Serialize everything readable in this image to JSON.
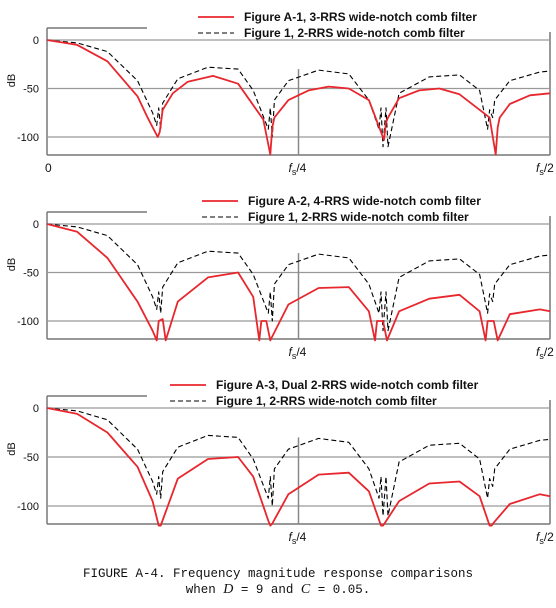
{
  "chart_data": [
    {
      "type": "line",
      "ylabel": "dB",
      "ylim": [
        -120,
        5
      ],
      "yticks": [
        0,
        -50,
        -100
      ],
      "xlim": [
        0,
        0.5
      ],
      "xtick_labels": {
        "start": "0",
        "mid": "fs/4",
        "end": "fs/2"
      },
      "grid": true,
      "legend_placement": "top-right",
      "series": [
        {
          "name": "Figure A-1, 3-RRS wide-notch comb filter",
          "color": "#e8262d",
          "dash": "solid",
          "x": [
            0,
            0.03,
            0.06,
            0.09,
            0.1,
            0.11,
            0.112,
            0.115,
            0.125,
            0.14,
            0.165,
            0.19,
            0.215,
            0.222,
            0.224,
            0.226,
            0.24,
            0.26,
            0.28,
            0.3,
            0.32,
            0.335,
            0.337,
            0.339,
            0.35,
            0.37,
            0.39,
            0.41,
            0.44,
            0.446,
            0.448,
            0.45,
            0.46,
            0.48,
            0.5
          ],
          "y": [
            0,
            -5,
            -22,
            -58,
            -80,
            -100,
            -95,
            -72,
            -55,
            -43,
            -37,
            -45,
            -82,
            -118,
            -90,
            -80,
            -62,
            -52,
            -48,
            -50,
            -62,
            -103,
            -85,
            -80,
            -60,
            -52,
            -50,
            -56,
            -80,
            -118,
            -90,
            -80,
            -66,
            -57,
            -55
          ]
        },
        {
          "name": "Figure 1, 2-RRS wide-notch comb filter",
          "color": "#000000",
          "dash": "dashed",
          "x": [
            0,
            0.03,
            0.06,
            0.09,
            0.105,
            0.109,
            0.111,
            0.113,
            0.115,
            0.13,
            0.16,
            0.19,
            0.205,
            0.22,
            0.222,
            0.224,
            0.226,
            0.24,
            0.27,
            0.3,
            0.32,
            0.33,
            0.332,
            0.334,
            0.337,
            0.339,
            0.35,
            0.38,
            0.41,
            0.43,
            0.438,
            0.44,
            0.443,
            0.445,
            0.46,
            0.49,
            0.5
          ],
          "y": [
            0,
            -3,
            -12,
            -42,
            -75,
            -88,
            -70,
            -92,
            -65,
            -40,
            -28,
            -30,
            -52,
            -92,
            -70,
            -100,
            -62,
            -42,
            -31,
            -35,
            -62,
            -92,
            -70,
            -110,
            -70,
            -110,
            -55,
            -38,
            -36,
            -52,
            -92,
            -72,
            -80,
            -62,
            -42,
            -33,
            -32
          ]
        }
      ]
    },
    {
      "type": "line",
      "ylabel": "dB",
      "ylim": [
        -120,
        5
      ],
      "yticks": [
        0,
        -50,
        -100
      ],
      "xlim": [
        0,
        0.5
      ],
      "xtick_labels": {
        "mid": "fs/4",
        "end": "fs/2"
      },
      "grid": true,
      "legend_placement": "top-right",
      "series": [
        {
          "name": "Figure A-2, 4-RRS wide-notch comb filter",
          "color": "#e8262d",
          "dash": "solid",
          "x": [
            0,
            0.03,
            0.06,
            0.09,
            0.105,
            0.109,
            0.111,
            0.115,
            0.118,
            0.13,
            0.16,
            0.19,
            0.205,
            0.211,
            0.213,
            0.218,
            0.222,
            0.24,
            0.27,
            0.3,
            0.32,
            0.326,
            0.328,
            0.334,
            0.338,
            0.35,
            0.38,
            0.41,
            0.43,
            0.436,
            0.438,
            0.444,
            0.448,
            0.46,
            0.49,
            0.5
          ],
          "y": [
            0,
            -8,
            -35,
            -80,
            -110,
            -120,
            -100,
            -98,
            -120,
            -80,
            -55,
            -50,
            -75,
            -120,
            -100,
            -100,
            -120,
            -83,
            -66,
            -65,
            -90,
            -120,
            -100,
            -100,
            -120,
            -90,
            -77,
            -73,
            -90,
            -120,
            -100,
            -100,
            -120,
            -93,
            -88,
            -90
          ]
        },
        {
          "name": "Figure 1, 2-RRS wide-notch comb filter",
          "color": "#000000",
          "dash": "dashed",
          "x": [
            0,
            0.03,
            0.06,
            0.09,
            0.105,
            0.109,
            0.111,
            0.113,
            0.115,
            0.13,
            0.16,
            0.19,
            0.205,
            0.22,
            0.222,
            0.224,
            0.226,
            0.24,
            0.27,
            0.3,
            0.32,
            0.33,
            0.332,
            0.334,
            0.337,
            0.339,
            0.35,
            0.38,
            0.41,
            0.43,
            0.438,
            0.44,
            0.443,
            0.445,
            0.46,
            0.49,
            0.5
          ],
          "y": [
            0,
            -3,
            -12,
            -42,
            -75,
            -88,
            -70,
            -92,
            -65,
            -40,
            -28,
            -30,
            -52,
            -92,
            -70,
            -100,
            -62,
            -42,
            -31,
            -35,
            -62,
            -92,
            -70,
            -110,
            -70,
            -110,
            -55,
            -38,
            -36,
            -52,
            -92,
            -72,
            -80,
            -62,
            -42,
            -33,
            -32
          ]
        }
      ]
    },
    {
      "type": "line",
      "ylabel": "dB",
      "ylim": [
        -120,
        5
      ],
      "yticks": [
        0,
        -50,
        -100
      ],
      "xlim": [
        0,
        0.5
      ],
      "xtick_labels": {
        "mid": "fs/4",
        "end": "fs/2"
      },
      "grid": true,
      "legend_placement": "top-right",
      "series": [
        {
          "name": "Figure A-3, Dual 2-RRS wide-notch comb filter",
          "color": "#e8262d",
          "dash": "solid",
          "x": [
            0,
            0.03,
            0.06,
            0.09,
            0.105,
            0.111,
            0.113,
            0.13,
            0.16,
            0.19,
            0.205,
            0.22,
            0.222,
            0.224,
            0.24,
            0.27,
            0.3,
            0.32,
            0.332,
            0.334,
            0.336,
            0.35,
            0.38,
            0.41,
            0.43,
            0.44,
            0.442,
            0.444,
            0.46,
            0.49,
            0.5
          ],
          "y": [
            0,
            -6,
            -25,
            -60,
            -95,
            -120,
            -120,
            -72,
            -52,
            -50,
            -70,
            -115,
            -120,
            -118,
            -88,
            -68,
            -66,
            -85,
            -120,
            -120,
            -117,
            -95,
            -77,
            -75,
            -90,
            -120,
            -120,
            -117,
            -98,
            -88,
            -90
          ]
        },
        {
          "name": "Figure 1, 2-RRS wide-notch comb filter",
          "color": "#000000",
          "dash": "dashed",
          "x": [
            0,
            0.03,
            0.06,
            0.09,
            0.105,
            0.109,
            0.111,
            0.113,
            0.115,
            0.13,
            0.16,
            0.19,
            0.205,
            0.22,
            0.222,
            0.224,
            0.226,
            0.24,
            0.27,
            0.3,
            0.32,
            0.33,
            0.332,
            0.334,
            0.337,
            0.339,
            0.35,
            0.38,
            0.41,
            0.43,
            0.438,
            0.44,
            0.443,
            0.445,
            0.46,
            0.49,
            0.5
          ],
          "y": [
            0,
            -3,
            -12,
            -42,
            -75,
            -88,
            -70,
            -92,
            -65,
            -40,
            -28,
            -30,
            -52,
            -92,
            -70,
            -100,
            -62,
            -42,
            -31,
            -35,
            -62,
            -92,
            -70,
            -110,
            -70,
            -110,
            -55,
            -38,
            -36,
            -52,
            -92,
            -72,
            -80,
            -62,
            -42,
            -33,
            -32
          ]
        }
      ]
    }
  ],
  "caption": {
    "prefix": "FIGURE A-4. Frequency magnitude response comparisons",
    "line2_a": "when ",
    "d_var": "D",
    "line2_b": " = 9 and ",
    "c_var": "C",
    "line2_c": " = 0.05."
  }
}
